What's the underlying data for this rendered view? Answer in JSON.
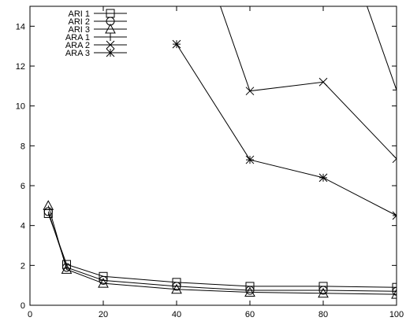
{
  "chart_data": {
    "type": "line",
    "title": "",
    "xlabel": "",
    "ylabel": "",
    "xlim": [
      0,
      100
    ],
    "ylim": [
      0,
      15
    ],
    "x_ticks": [
      0,
      20,
      40,
      60,
      80,
      100
    ],
    "y_ticks": [
      0,
      2,
      4,
      6,
      8,
      10,
      12,
      14
    ],
    "grid": false,
    "legend_position": "top-left",
    "series": [
      {
        "name": "ARI 1",
        "marker": "square",
        "color": "#000000",
        "x": [
          5,
          10,
          20,
          40,
          60,
          80,
          100
        ],
        "y": [
          4.6,
          2.05,
          1.45,
          1.15,
          0.95,
          0.95,
          0.9
        ]
      },
      {
        "name": "ARI 2",
        "marker": "circle",
        "color": "#000000",
        "x": [
          5,
          10,
          20,
          40,
          60,
          80,
          100
        ],
        "y": [
          4.7,
          1.9,
          1.25,
          0.95,
          0.75,
          0.75,
          0.7
        ]
      },
      {
        "name": "ARI 3",
        "marker": "triangle",
        "color": "#000000",
        "x": [
          5,
          10,
          20,
          40,
          60,
          80,
          100
        ],
        "y": [
          5.0,
          1.8,
          1.1,
          0.8,
          0.65,
          0.6,
          0.55
        ]
      },
      {
        "name": "ARA 1",
        "marker": "plus",
        "color": "#000000",
        "x": [
          40,
          91,
          100
        ],
        "y": [
          15.5,
          15.5,
          10.8
        ]
      },
      {
        "name": "ARA 2",
        "marker": "cross",
        "color": "#000000",
        "x": [
          51,
          60,
          80,
          100
        ],
        "y": [
          15.5,
          10.75,
          11.2,
          7.35
        ]
      },
      {
        "name": "ARA 3",
        "marker": "star",
        "color": "#000000",
        "x": [
          40,
          60,
          80,
          100
        ],
        "y": [
          13.1,
          7.3,
          6.4,
          4.5
        ]
      }
    ]
  }
}
